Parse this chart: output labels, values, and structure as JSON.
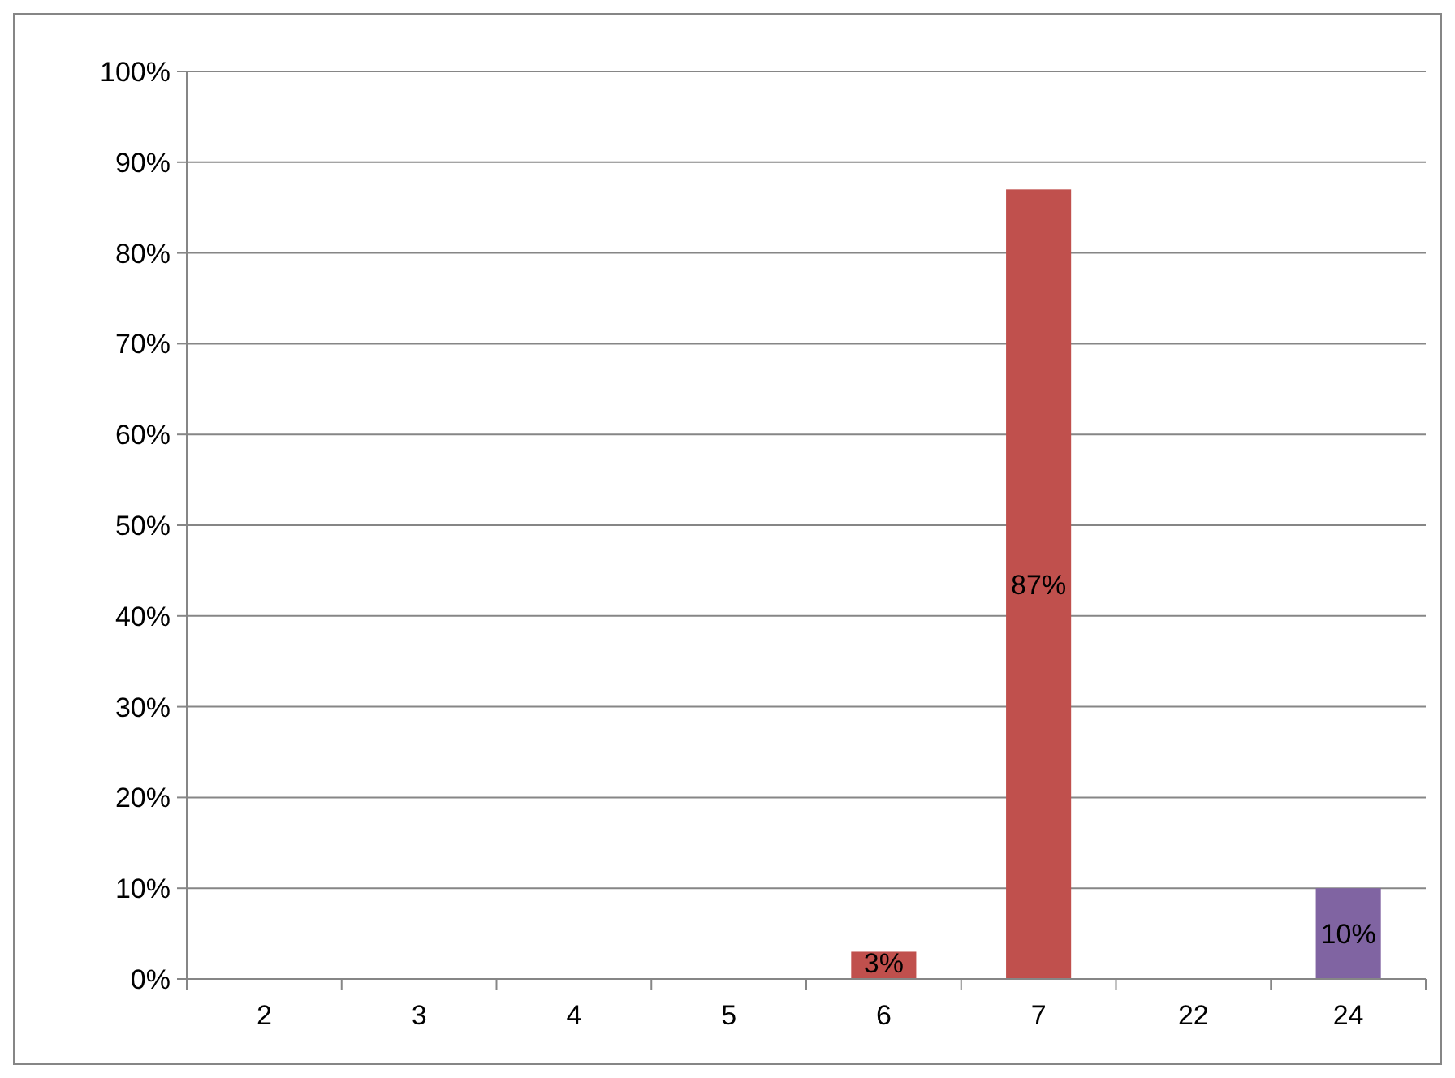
{
  "chart_data": {
    "type": "bar",
    "categories": [
      "2",
      "3",
      "4",
      "5",
      "6",
      "7",
      "22",
      "24"
    ],
    "values": [
      0,
      0,
      0,
      0,
      3,
      87,
      0,
      10
    ],
    "colors": [
      "#c0504d",
      "#c0504d",
      "#c0504d",
      "#c0504d",
      "#c0504d",
      "#c0504d",
      "#c0504d",
      "#8064a2"
    ],
    "value_labels": [
      null,
      null,
      null,
      null,
      "3%",
      "87%",
      null,
      "10%"
    ],
    "ylim": [
      0,
      100
    ],
    "yticks": [
      {
        "value": 0,
        "label": "0%"
      },
      {
        "value": 10,
        "label": "10%"
      },
      {
        "value": 20,
        "label": "20%"
      },
      {
        "value": 30,
        "label": "30%"
      },
      {
        "value": 40,
        "label": "40%"
      },
      {
        "value": 50,
        "label": "50%"
      },
      {
        "value": 60,
        "label": "60%"
      },
      {
        "value": 70,
        "label": "70%"
      },
      {
        "value": 80,
        "label": "80%"
      },
      {
        "value": 90,
        "label": "90%"
      },
      {
        "value": 100,
        "label": "100%"
      }
    ],
    "grid": "y"
  }
}
